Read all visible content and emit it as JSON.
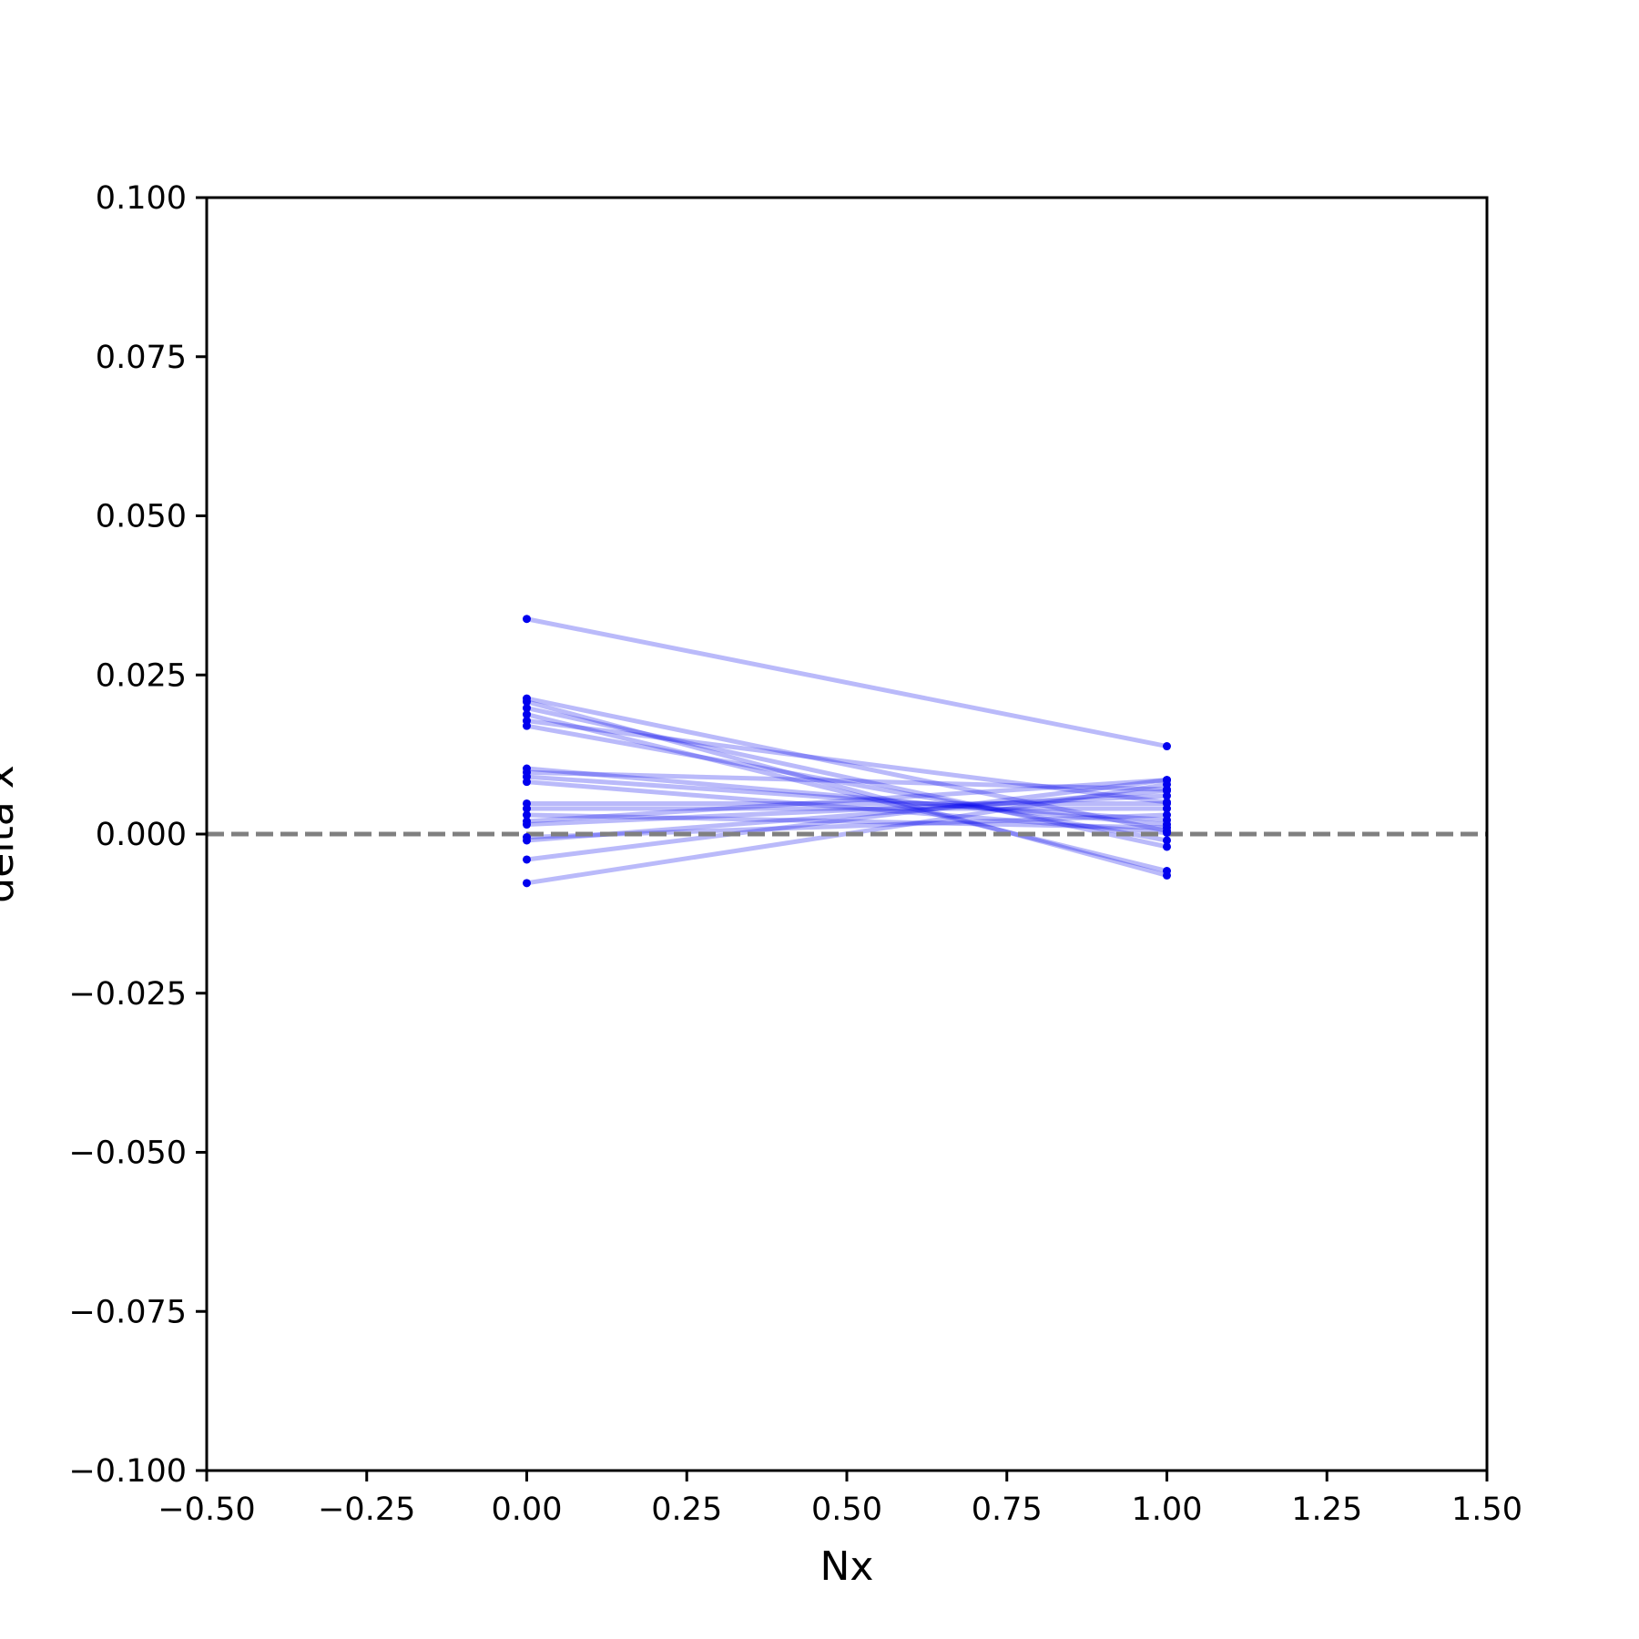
{
  "chart_data": {
    "type": "line",
    "xlabel": "Nx",
    "ylabel": "delta x",
    "xlim": [
      -0.5,
      1.5
    ],
    "ylim": [
      -0.1,
      0.1
    ],
    "xticks": [
      "−0.50",
      "−0.25",
      "0.00",
      "0.25",
      "0.50",
      "0.75",
      "1.00",
      "1.25",
      "1.50"
    ],
    "yticks": [
      "0.100",
      "0.075",
      "0.050",
      "0.025",
      "0.000",
      "−0.025",
      "−0.050",
      "−0.075",
      "−0.100"
    ],
    "reference_line": {
      "y": 0.0,
      "style": "dashed",
      "color": "#808080"
    },
    "series_color": "#0000ee",
    "x": [
      0,
      1
    ],
    "series": [
      {
        "values": [
          0.0338,
          0.0138
        ]
      },
      {
        "values": [
          -0.0077,
          0.0078
        ]
      },
      {
        "values": [
          -0.004,
          0.0085
        ]
      },
      {
        "values": [
          -0.001,
          0.0068
        ]
      },
      {
        "values": [
          -0.0005,
          0.003
        ]
      },
      {
        "values": [
          0.0015,
          0.006
        ]
      },
      {
        "values": [
          0.002,
          0.0085
        ]
      },
      {
        "values": [
          0.003,
          0.001
        ]
      },
      {
        "values": [
          0.004,
          0.004
        ]
      },
      {
        "values": [
          0.0048,
          0.0048
        ]
      },
      {
        "values": [
          0.0082,
          0.0002
        ]
      },
      {
        "values": [
          0.009,
          0.0022
        ]
      },
      {
        "values": [
          0.0097,
          0.007
        ]
      },
      {
        "values": [
          0.0103,
          0.0015
        ]
      },
      {
        "values": [
          0.017,
          -0.001
        ]
      },
      {
        "values": [
          0.0178,
          0.005
        ]
      },
      {
        "values": [
          0.0188,
          -0.0058
        ]
      },
      {
        "values": [
          0.0198,
          -0.002
        ]
      },
      {
        "values": [
          0.0208,
          -0.0065
        ]
      },
      {
        "values": [
          0.0213,
          0.0005
        ]
      }
    ]
  }
}
